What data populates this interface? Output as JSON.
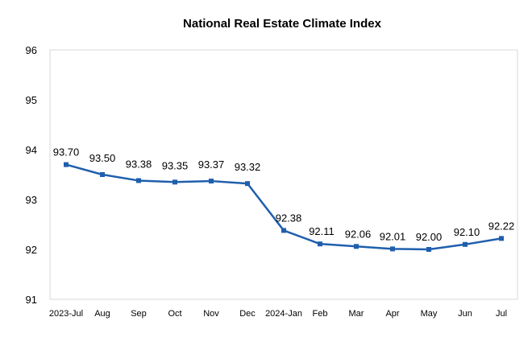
{
  "chart_data": {
    "type": "line",
    "title": "National Real Estate Climate Index",
    "xlabel": "",
    "ylabel": "",
    "categories": [
      "2023-Jul",
      "Aug",
      "Sep",
      "Oct",
      "Nov",
      "Dec",
      "2024-Jan",
      "Feb",
      "Mar",
      "Apr",
      "May",
      "Jun",
      "Jul"
    ],
    "series": [
      {
        "values": [
          93.7,
          93.5,
          93.38,
          93.35,
          93.37,
          93.32,
          92.38,
          92.11,
          92.06,
          92.01,
          92.0,
          92.1,
          92.22
        ],
        "labels": [
          "93.70",
          "93.50",
          "93.38",
          "93.35",
          "93.37",
          "93.32",
          "92.38",
          "92.11",
          "92.06",
          "92.01",
          "92.00",
          "92.10",
          "92.22"
        ],
        "color": "#1f5fad"
      }
    ],
    "ylim": [
      91,
      96
    ],
    "yticks": [
      "91",
      "92",
      "93",
      "94",
      "95",
      "96"
    ],
    "grid": false,
    "legend": "none",
    "frame_color": "#d9d9d9"
  }
}
